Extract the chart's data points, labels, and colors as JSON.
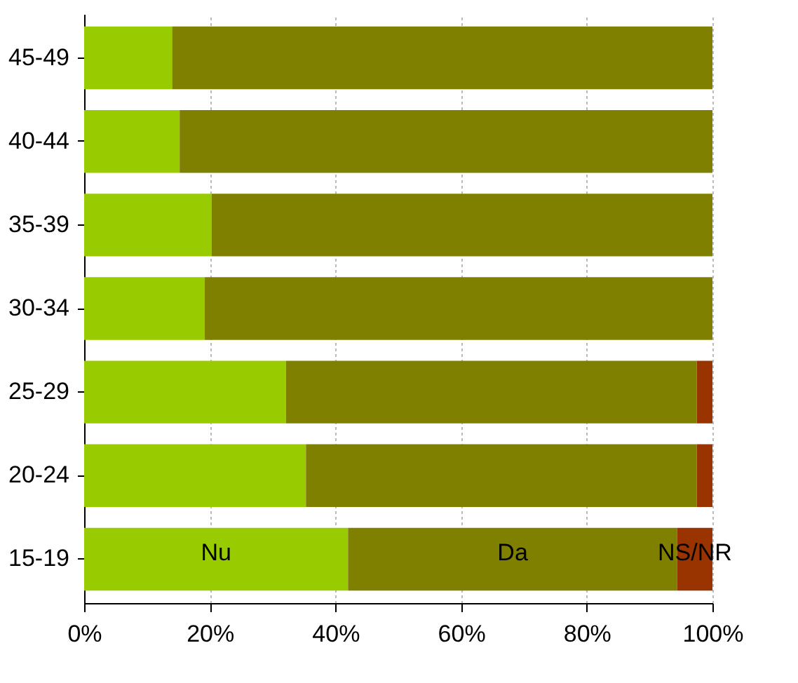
{
  "chart_data": {
    "type": "bar",
    "orientation": "horizontal",
    "stacked": true,
    "legend": false,
    "grid": "x",
    "categories": [
      "45-49",
      "40-44",
      "35-39",
      "30-34",
      "25-29",
      "20-24",
      "15-19"
    ],
    "series": [
      {
        "name": "Nu",
        "color": "#99cc00",
        "values": [
          14,
          15.2,
          20.3,
          19.2,
          32.1,
          35.3,
          42
        ]
      },
      {
        "name": "Da",
        "color": "#808000",
        "values": [
          86,
          84.8,
          79.7,
          80.8,
          65.4,
          62.2,
          52.4
        ]
      },
      {
        "name": "NS/NR",
        "color": "#993300",
        "values": [
          0,
          0,
          0,
          0,
          2.5,
          2.5,
          5.6
        ]
      }
    ],
    "xlim": [
      0,
      100
    ],
    "xticks": [
      {
        "value": 0,
        "label": "0%"
      },
      {
        "value": 20,
        "label": "20%"
      },
      {
        "value": 40,
        "label": "40%"
      },
      {
        "value": 60,
        "label": "60%"
      },
      {
        "value": 80,
        "label": "80%"
      },
      {
        "value": 100,
        "label": "100%"
      }
    ]
  }
}
